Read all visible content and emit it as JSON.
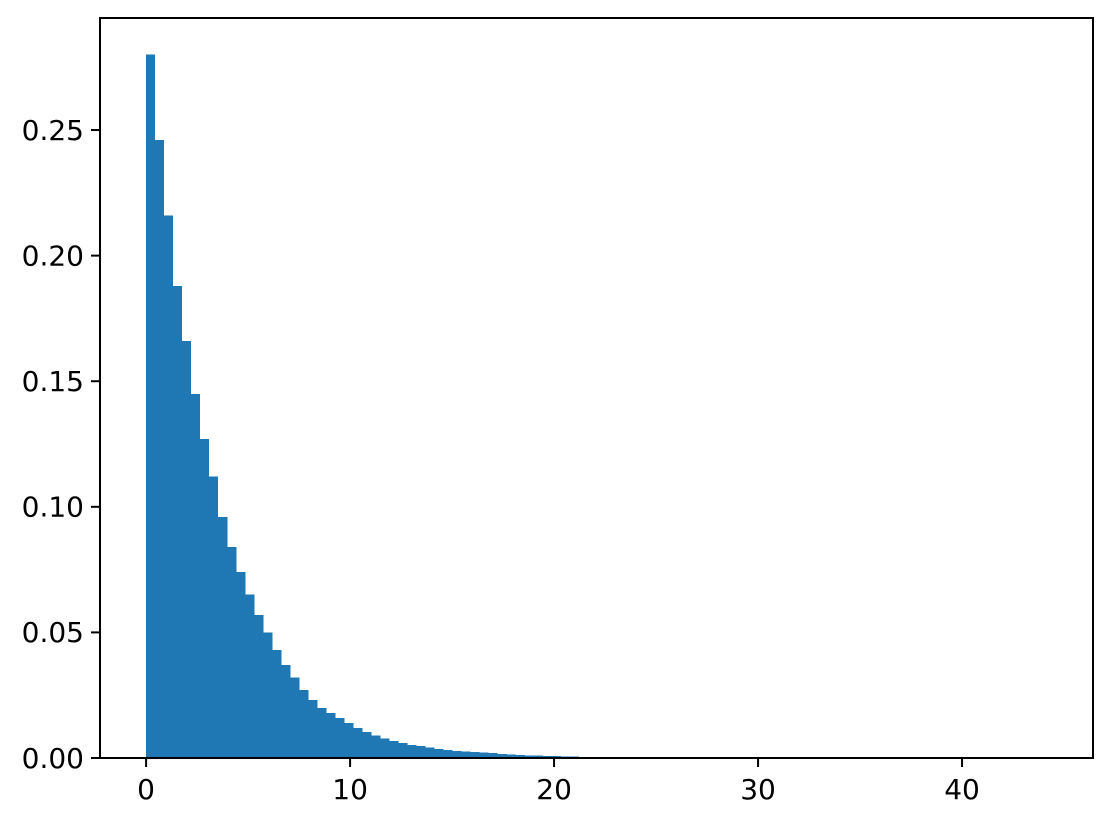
{
  "figure": {
    "background": "#ffffff",
    "title": ""
  },
  "chart_data": {
    "type": "bar",
    "subtype": "histogram",
    "title": "",
    "xlabel": "",
    "ylabel": "",
    "legend": null,
    "grid": false,
    "bar_color": "#1f77b4",
    "frame_color": "#000000",
    "bin_start": 0,
    "bin_width": 0.442,
    "heights": [
      0.28,
      0.246,
      0.216,
      0.188,
      0.166,
      0.145,
      0.127,
      0.112,
      0.096,
      0.084,
      0.074,
      0.065,
      0.057,
      0.05,
      0.043,
      0.037,
      0.032,
      0.027,
      0.023,
      0.02,
      0.018,
      0.016,
      0.014,
      0.012,
      0.0104,
      0.009,
      0.0077,
      0.0068,
      0.006,
      0.0052,
      0.0047,
      0.0041,
      0.0036,
      0.0032,
      0.0028,
      0.0026,
      0.0023,
      0.0021,
      0.0019,
      0.0016,
      0.0014,
      0.0012,
      0.001,
      0.0009,
      0.0008,
      0.0007,
      0.0006,
      0.0005,
      0.0004,
      0.0003
    ],
    "xlim": [
      -2.26,
      46.42
    ],
    "ylim": [
      0,
      0.2946
    ],
    "xticks": [
      0,
      10,
      20,
      30,
      40
    ],
    "xtick_labels": [
      "0",
      "10",
      "20",
      "30",
      "40"
    ],
    "yticks": [
      0.0,
      0.05,
      0.1,
      0.15,
      0.2,
      0.25
    ],
    "ytick_labels": [
      "0.00",
      "0.05",
      "0.10",
      "0.15",
      "0.20",
      "0.25"
    ]
  }
}
